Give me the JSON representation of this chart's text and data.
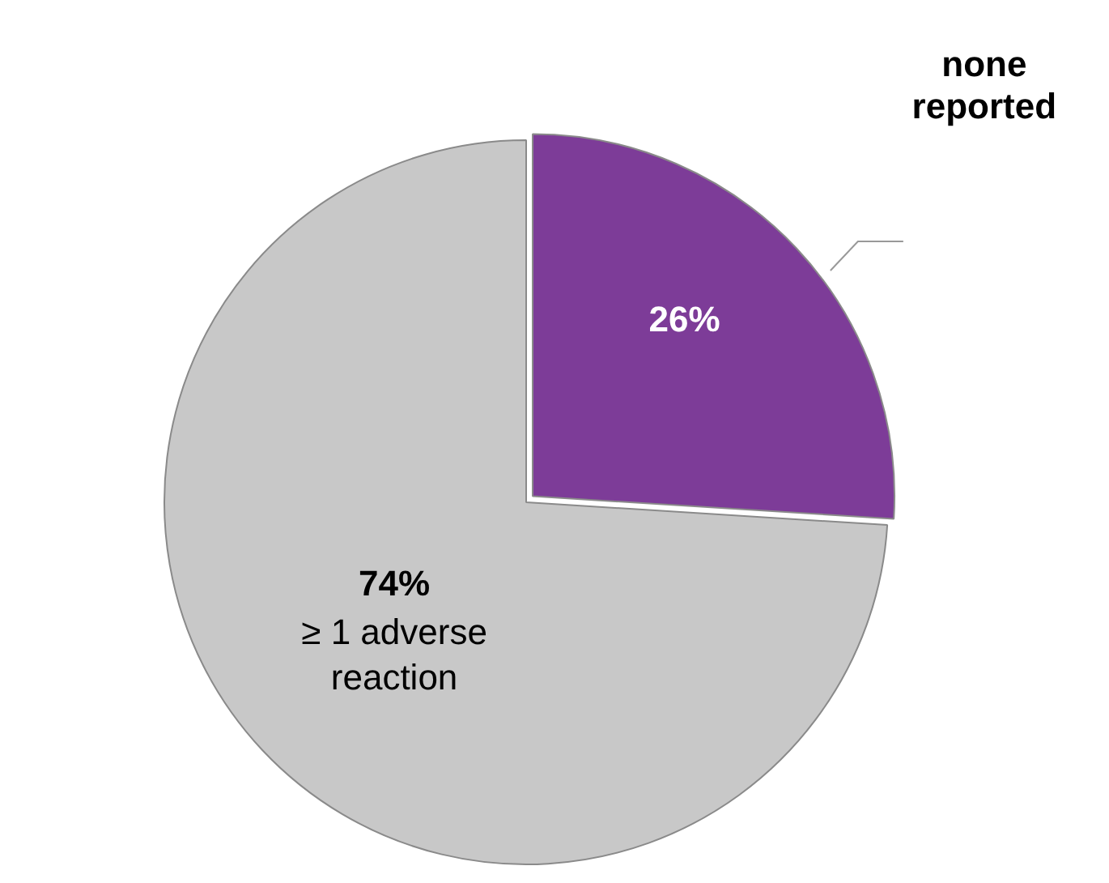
{
  "chart_data": {
    "type": "pie",
    "categories": [
      "none reported",
      "≥ 1 adverse reaction"
    ],
    "values": [
      26,
      74
    ],
    "colors": [
      "#7d3c98",
      "#c8c8c8"
    ],
    "value_labels": [
      "26%",
      "74%"
    ],
    "legend": false
  }
}
